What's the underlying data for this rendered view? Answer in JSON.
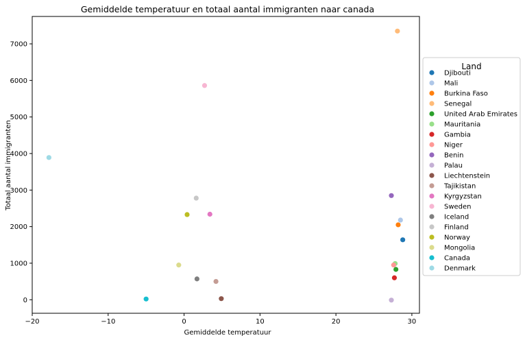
{
  "chart_data": {
    "type": "scatter",
    "title": "Gemiddelde temperatuur en totaal aantal immigranten naar canada",
    "xlabel": "Gemiddelde temperatuur",
    "ylabel": "Totaal aantal immigranten",
    "xlim": [
      -20,
      31
    ],
    "ylim": [
      -370,
      7750
    ],
    "xticks": [
      -20,
      -10,
      0,
      10,
      20,
      30
    ],
    "yticks": [
      0,
      1000,
      2000,
      3000,
      4000,
      5000,
      6000,
      7000
    ],
    "grid": false,
    "legend": {
      "title": "Land",
      "placement": "center-right-outside"
    },
    "series": [
      {
        "name": "Djibouti",
        "color": "#1f77b4",
        "x": [
          28.8
        ],
        "y": [
          1640
        ]
      },
      {
        "name": "Mali",
        "color": "#aec7e8",
        "x": [
          28.5
        ],
        "y": [
          2180
        ]
      },
      {
        "name": "Burkina Faso",
        "color": "#ff7f0e",
        "x": [
          28.2
        ],
        "y": [
          2050
        ]
      },
      {
        "name": "Senegal",
        "color": "#ffbb78",
        "x": [
          28.1
        ],
        "y": [
          7350
        ]
      },
      {
        "name": "United Arab Emirates",
        "color": "#2ca02c",
        "x": [
          27.9
        ],
        "y": [
          830
        ]
      },
      {
        "name": "Mauritania",
        "color": "#98df8a",
        "x": [
          27.8
        ],
        "y": [
          990
        ]
      },
      {
        "name": "Gambia",
        "color": "#d62728",
        "x": [
          27.7
        ],
        "y": [
          600
        ]
      },
      {
        "name": "Niger",
        "color": "#ff9896",
        "x": [
          27.6
        ],
        "y": [
          950
        ]
      },
      {
        "name": "Benin",
        "color": "#9467bd",
        "x": [
          27.3
        ],
        "y": [
          2850
        ]
      },
      {
        "name": "Palau",
        "color": "#c5b0d5",
        "x": [
          27.3
        ],
        "y": [
          -10
        ]
      },
      {
        "name": "Liechtenstein",
        "color": "#8c564b",
        "x": [
          4.9
        ],
        "y": [
          30
        ]
      },
      {
        "name": "Tajikistan",
        "color": "#c49c94",
        "x": [
          4.2
        ],
        "y": [
          500
        ]
      },
      {
        "name": "Kyrgyzstan",
        "color": "#e377c2",
        "x": [
          3.4
        ],
        "y": [
          2340
        ]
      },
      {
        "name": "Sweden",
        "color": "#f7b6d2",
        "x": [
          2.7
        ],
        "y": [
          5860
        ]
      },
      {
        "name": "Iceland",
        "color": "#7f7f7f",
        "x": [
          1.7
        ],
        "y": [
          570
        ]
      },
      {
        "name": "Finland",
        "color": "#c7c7c7",
        "x": [
          1.6
        ],
        "y": [
          2780
        ]
      },
      {
        "name": "Norway",
        "color": "#bcbd22",
        "x": [
          0.4
        ],
        "y": [
          2330
        ]
      },
      {
        "name": "Mongolia",
        "color": "#dbdb8d",
        "x": [
          -0.7
        ],
        "y": [
          950
        ]
      },
      {
        "name": "Canada",
        "color": "#17becf",
        "x": [
          -5.0
        ],
        "y": [
          20
        ]
      },
      {
        "name": "Denmark",
        "color": "#9edae5",
        "x": [
          -17.8
        ],
        "y": [
          3890
        ]
      }
    ]
  }
}
